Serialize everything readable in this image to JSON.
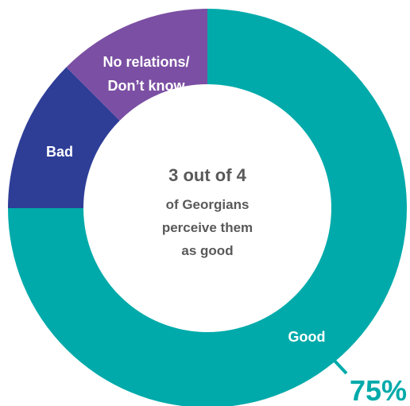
{
  "chart_data": {
    "type": "pie",
    "slices": [
      {
        "label": "Good",
        "value": 75,
        "color": "#00AAAA"
      },
      {
        "label": "Bad",
        "value": 12.5,
        "color": "#2E3E97"
      },
      {
        "label_lines": [
          "No relations/",
          "Don’t know"
        ],
        "value": 12.5,
        "color": "#7B4FA3"
      }
    ],
    "center_text": {
      "line1": "3 out of 4",
      "line2": "of Georgians",
      "line3": "perceive them",
      "line4": "as good"
    },
    "callout": {
      "text": "75%",
      "color": "#00AAAA"
    },
    "start": "top",
    "direction": "clockwise",
    "donut": true
  }
}
